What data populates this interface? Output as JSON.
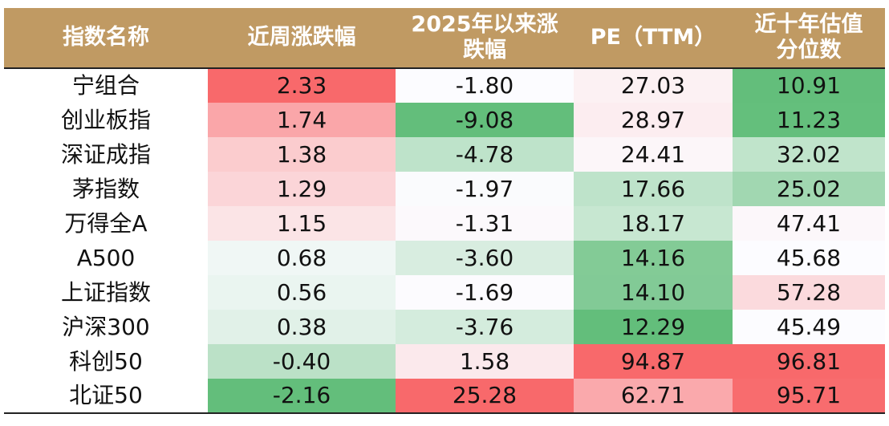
{
  "headers": [
    "指数名称",
    "近周涨跌幅",
    "2025年以来涨跌幅",
    "PE（TTM）",
    "近十年估值分位数"
  ],
  "header_lines": [
    [
      "指数名称"
    ],
    [
      "近周涨跌幅"
    ],
    [
      "2025年以来涨",
      "跌幅"
    ],
    [
      "PE（TTM）"
    ],
    [
      "近十年估值",
      "分位数"
    ]
  ],
  "rows": [
    {
      "name": "宁组合",
      "week": "2.33",
      "ytd": "-1.80",
      "pe": "27.03",
      "pct": "10.91"
    },
    {
      "name": "创业板指",
      "week": "1.74",
      "ytd": "-9.08",
      "pe": "28.97",
      "pct": "11.23"
    },
    {
      "name": "深证成指",
      "week": "1.38",
      "ytd": "-4.78",
      "pe": "24.41",
      "pct": "32.02"
    },
    {
      "name": "茅指数",
      "week": "1.29",
      "ytd": "-1.97",
      "pe": "17.66",
      "pct": "25.02"
    },
    {
      "name": "万得全A",
      "week": "1.15",
      "ytd": "-1.31",
      "pe": "18.17",
      "pct": "47.41"
    },
    {
      "name": "A500",
      "week": "0.68",
      "ytd": "-3.60",
      "pe": "14.16",
      "pct": "45.68"
    },
    {
      "name": "上证指数",
      "week": "0.56",
      "ytd": "-1.69",
      "pe": "14.10",
      "pct": "57.28"
    },
    {
      "name": "沪深300",
      "week": "0.38",
      "ytd": "-3.76",
      "pe": "12.29",
      "pct": "45.49"
    },
    {
      "name": "科创50",
      "week": "-0.40",
      "ytd": "1.58",
      "pe": "94.87",
      "pct": "96.81"
    },
    {
      "name": "北证50",
      "week": "-2.16",
      "ytd": "25.28",
      "pe": "62.71",
      "pct": "95.71"
    }
  ],
  "colors": {
    "header_bg": "#c09a63",
    "header_text": "#ffffff",
    "high": "#f8696b",
    "mid": "#fcfcff",
    "low": "#63be7b"
  }
}
